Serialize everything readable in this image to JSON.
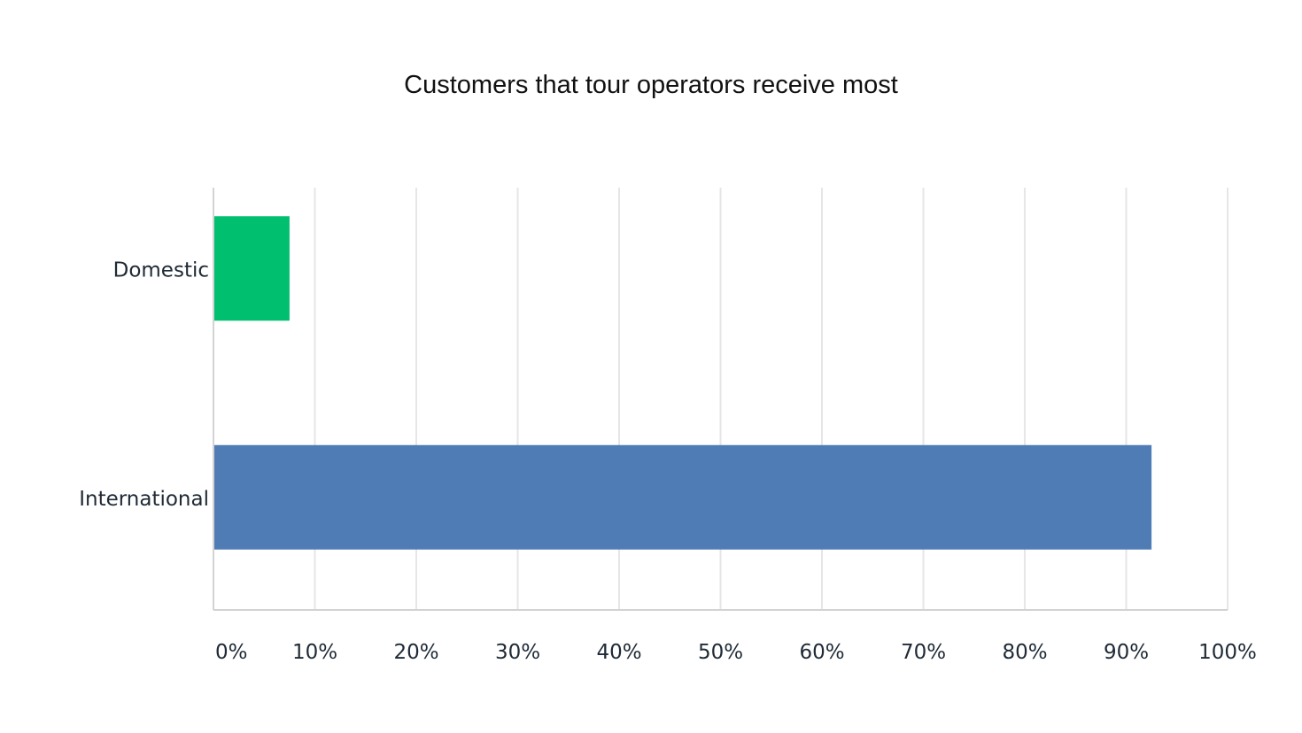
{
  "chart_data": {
    "type": "bar",
    "orientation": "horizontal",
    "title": "Customers that tour operators receive most",
    "categories": [
      "Domestic",
      "International"
    ],
    "values": [
      7.5,
      92.5
    ],
    "unit": "%",
    "xlabel": "",
    "ylabel": "",
    "xlim": [
      0,
      100
    ],
    "ticks": [
      "0%",
      "10%",
      "20%",
      "30%",
      "40%",
      "50%",
      "60%",
      "70%",
      "80%",
      "90%",
      "100%"
    ],
    "grid": true,
    "legend": "none",
    "colors": [
      "#00bf6f",
      "#507cb6"
    ]
  }
}
